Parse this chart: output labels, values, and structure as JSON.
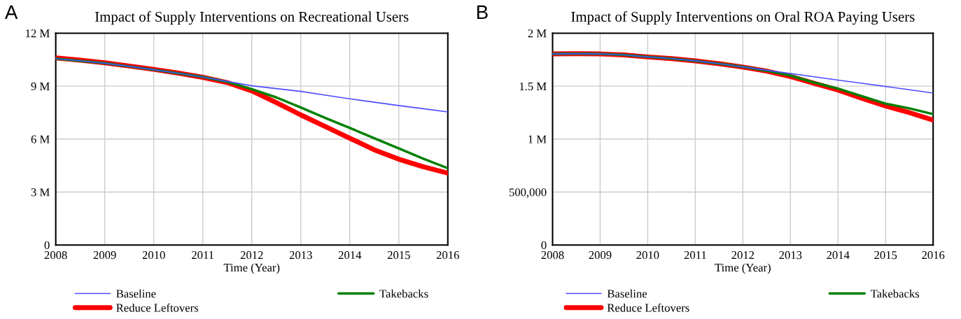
{
  "chart_data": [
    {
      "type": "line",
      "title": "Impact of Supply Interventions on Recreational Users",
      "xlabel": "Time (Year)",
      "annotations": [
        "A"
      ],
      "x": [
        2008,
        2008.5,
        2009,
        2009.5,
        2010,
        2010.5,
        2011,
        2011.5,
        2012,
        2012.5,
        2013,
        2013.5,
        2014,
        2014.5,
        2015,
        2015.5,
        2016
      ],
      "series": [
        {
          "name": "Baseline",
          "color": "#4d4dff",
          "values": [
            10560000,
            10430000,
            10300000,
            10120000,
            9930000,
            9730000,
            9520000,
            9270000,
            9020000,
            8860000,
            8700000,
            8490000,
            8280000,
            8090000,
            7900000,
            7720000,
            7540000
          ]
        },
        {
          "name": "Takebacks",
          "color": "#008000",
          "values": [
            10560000,
            10430000,
            10300000,
            10120000,
            9930000,
            9730000,
            9520000,
            9240000,
            8830000,
            8360000,
            7790000,
            7200000,
            6630000,
            6050000,
            5470000,
            4890000,
            4350000
          ]
        },
        {
          "name": "Reduce Leftovers",
          "color": "#ff0000",
          "values": [
            10600000,
            10470000,
            10320000,
            10140000,
            9950000,
            9740000,
            9500000,
            9200000,
            8730000,
            8070000,
            7370000,
            6710000,
            6050000,
            5390000,
            4860000,
            4430000,
            4070000
          ]
        }
      ],
      "xlim": [
        2008,
        2016
      ],
      "xticks": [
        2008,
        2009,
        2010,
        2011,
        2012,
        2013,
        2014,
        2015,
        2016
      ],
      "ylim": [
        0,
        12000000
      ],
      "yticks": [
        {
          "value": 0,
          "label": "0"
        },
        {
          "value": 3000000,
          "label": "3 M"
        },
        {
          "value": 6000000,
          "label": "6 M"
        },
        {
          "value": 9000000,
          "label": "9 M"
        },
        {
          "value": 12000000,
          "label": "12 M"
        }
      ],
      "grid": true,
      "legend": "bottom",
      "marker": "none",
      "line_style": "solid"
    },
    {
      "type": "line",
      "title": "Impact of Supply Interventions on Oral ROA Paying Users",
      "xlabel": "Time (Year)",
      "annotations": [
        "B"
      ],
      "x": [
        2008,
        2008.5,
        2009,
        2009.5,
        2010,
        2010.5,
        2011,
        2011.5,
        2012,
        2012.5,
        2013,
        2013.5,
        2014,
        2014.5,
        2015,
        2015.5,
        2016
      ],
      "series": [
        {
          "name": "Baseline",
          "color": "#4d4dff",
          "values": [
            1804000,
            1806000,
            1804000,
            1795000,
            1776000,
            1760000,
            1739000,
            1712000,
            1682000,
            1650000,
            1619000,
            1588000,
            1557000,
            1527000,
            1497000,
            1466000,
            1435000
          ]
        },
        {
          "name": "Takebacks",
          "color": "#008000",
          "values": [
            1804000,
            1806000,
            1804000,
            1795000,
            1776000,
            1760000,
            1739000,
            1712000,
            1682000,
            1645000,
            1600000,
            1534000,
            1477000,
            1406000,
            1335000,
            1290000,
            1236000
          ]
        },
        {
          "name": "Reduce Leftovers",
          "color": "#ff0000",
          "values": [
            1804000,
            1806000,
            1804000,
            1795000,
            1776000,
            1760000,
            1739000,
            1712000,
            1680000,
            1642000,
            1591000,
            1526000,
            1463000,
            1386000,
            1313000,
            1250000,
            1179000
          ]
        }
      ],
      "xlim": [
        2008,
        2016
      ],
      "xticks": [
        2008,
        2009,
        2010,
        2011,
        2012,
        2013,
        2014,
        2015,
        2016
      ],
      "ylim": [
        0,
        2000000
      ],
      "yticks": [
        {
          "value": 0,
          "label": "0"
        },
        {
          "value": 500000,
          "label": "500,000"
        },
        {
          "value": 1000000,
          "label": "1 M"
        },
        {
          "value": 1500000,
          "label": "1.5 M"
        },
        {
          "value": 2000000,
          "label": "2 M"
        }
      ],
      "grid": true,
      "legend": "bottom",
      "marker": "none",
      "line_style": "solid"
    }
  ]
}
